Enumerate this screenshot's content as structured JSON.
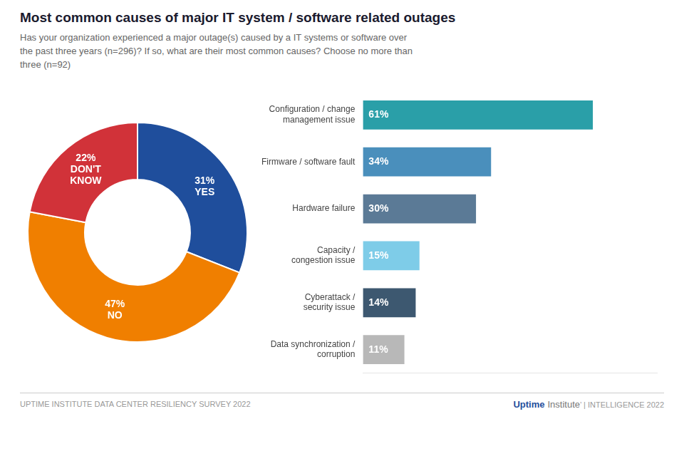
{
  "chart_data": [
    {
      "type": "doughnut",
      "title": "Most common causes of major IT system / software related outages",
      "subtitle": "Has your organization experienced a major outage(s) caused by a IT systems or software over\nthe past three years (n=296)? If so, what are their most common causes? Choose no more than\nthree (n=92)",
      "categories": [
        "YES",
        "NO",
        "DON'T\nKNOW"
      ],
      "values": [
        31,
        47,
        22
      ],
      "value_labels": [
        "31%",
        "47%",
        "22%"
      ],
      "colors": [
        "#1f4e9c",
        "#f07f00",
        "#d13239"
      ],
      "data_labels": true
    },
    {
      "type": "bar",
      "orientation": "horizontal",
      "categories": [
        "Configuration / change\nmanagement issue",
        "Firmware / software fault",
        "Hardware failure",
        "Capacity /\ncongestion issue",
        "Cyberattack /\nsecurity issue",
        "Data synchronization /\ncorruption"
      ],
      "values": [
        61,
        34,
        30,
        15,
        14,
        11
      ],
      "value_labels": [
        "61%",
        "34%",
        "30%",
        "15%",
        "14%",
        "11%"
      ],
      "colors": [
        "#2a9fa8",
        "#4a8fbc",
        "#5b7a96",
        "#7ecce8",
        "#3d5870",
        "#b8b8b8"
      ],
      "xlim": [
        0,
        78
      ],
      "grid": false,
      "tick_labels": "y",
      "data_labels": true,
      "annotations": [
        "UPTIME INSTITUTE DATA CENTER RESILIENCY SURVEY 2022",
        "Uptime",
        "Institute",
        "’ | INTELLIGENCE 2022"
      ]
    }
  ]
}
